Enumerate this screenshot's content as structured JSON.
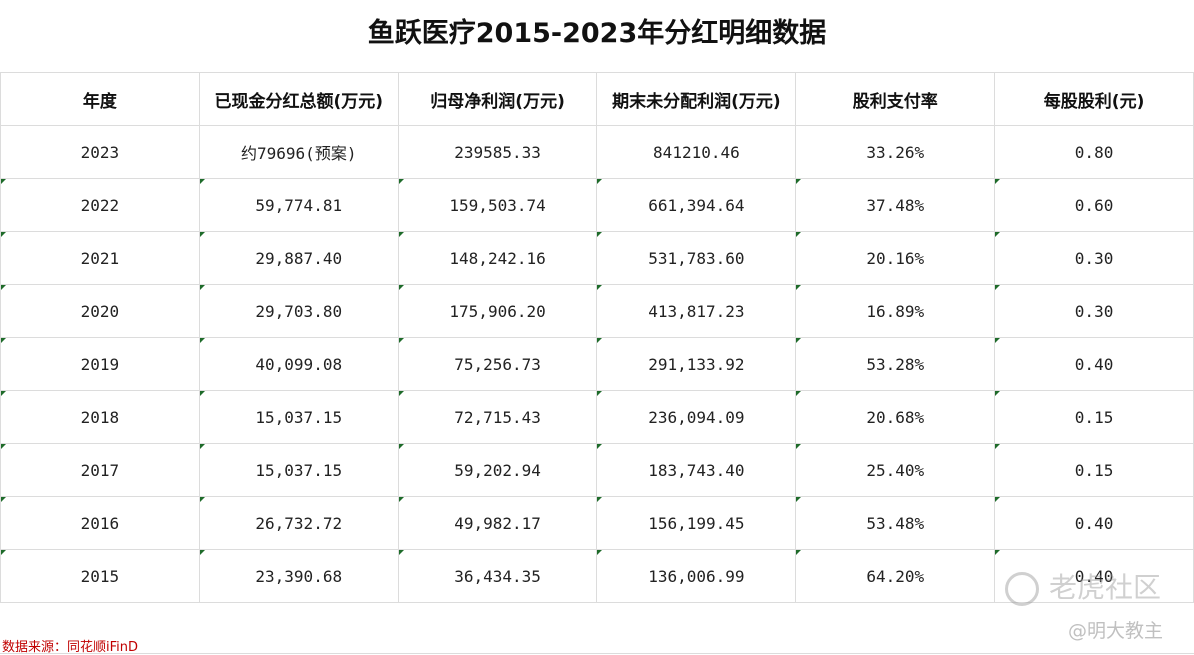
{
  "title": "鱼跃医疗2015-2023年分红明细数据",
  "table": {
    "headers": [
      "年度",
      "已现金分红总额(万元)",
      "归母净利润(万元)",
      "期末未分配利润(万元)",
      "股利支付率",
      "每股股利(元)"
    ],
    "rows": [
      [
        "2023",
        "约79696(预案)",
        "239585.33",
        "841210.46",
        "33.26%",
        "0.80"
      ],
      [
        "2022",
        "59,774.81",
        "159,503.74",
        "661,394.64",
        "37.48%",
        "0.60"
      ],
      [
        "2021",
        "29,887.40",
        "148,242.16",
        "531,783.60",
        "20.16%",
        "0.30"
      ],
      [
        "2020",
        "29,703.80",
        "175,906.20",
        "413,817.23",
        "16.89%",
        "0.30"
      ],
      [
        "2019",
        "40,099.08",
        "75,256.73",
        "291,133.92",
        "53.28%",
        "0.40"
      ],
      [
        "2018",
        "15,037.15",
        "72,715.43",
        "236,094.09",
        "20.68%",
        "0.15"
      ],
      [
        "2017",
        "15,037.15",
        "59,202.94",
        "183,743.40",
        "25.40%",
        "0.15"
      ],
      [
        "2016",
        "26,732.72",
        "49,982.17",
        "156,199.45",
        "53.48%",
        "0.40"
      ],
      [
        "2015",
        "23,390.68",
        "36,434.35",
        "136,006.99",
        "64.20%",
        "0.40"
      ]
    ]
  },
  "source": "数据来源：同花顺iFinD",
  "watermark": {
    "brand": "老虎社区",
    "author": "@明大教主"
  },
  "colors": {
    "source_text": "#c00000",
    "cell_flag": "#1e6b2a",
    "grid": "#dcdcdc"
  }
}
